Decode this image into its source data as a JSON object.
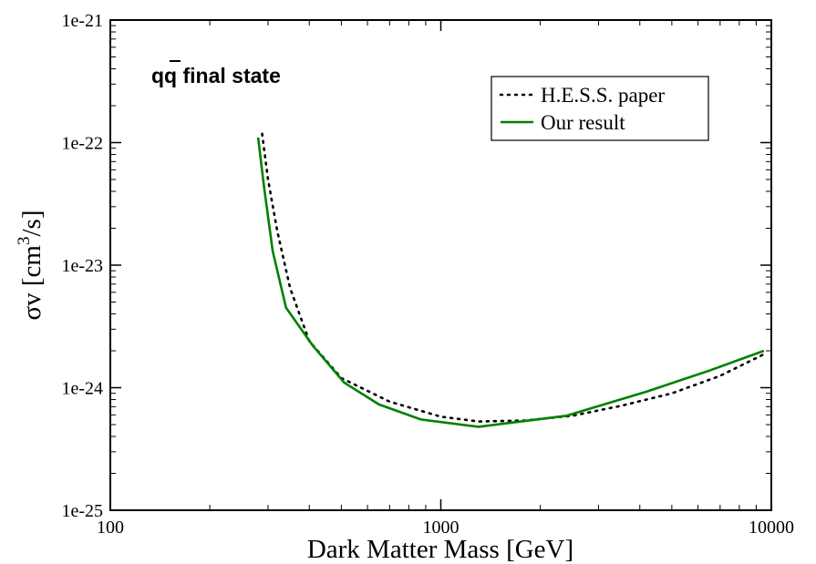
{
  "chart_data": {
    "type": "line",
    "annotation_main": "qq",
    "annotation_rest": " final state",
    "xlabel": "Dark Matter Mass [GeV]",
    "ylabel_main": "σv [cm",
    "ylabel_sup": "3",
    "ylabel_end": "/s]",
    "x_scale": "log",
    "y_scale": "log",
    "xlim": [
      100,
      10000
    ],
    "ylim": [
      1e-25,
      1e-21
    ],
    "x_ticks": [
      {
        "value": 100,
        "label": "100"
      },
      {
        "value": 1000,
        "label": "1000"
      },
      {
        "value": 10000,
        "label": "10000"
      }
    ],
    "y_ticks": [
      {
        "value": 1e-25,
        "label": "1e-25"
      },
      {
        "value": 1e-24,
        "label": "1e-24"
      },
      {
        "value": 1e-23,
        "label": "1e-23"
      },
      {
        "value": 1e-22,
        "label": "1e-22"
      },
      {
        "value": 1e-21,
        "label": "1e-21"
      }
    ],
    "grid": false,
    "legend_position": "top-right",
    "series": [
      {
        "name": "H.E.S.S. paper",
        "color": "#000000",
        "style": "dotted",
        "x": [
          288,
          300,
          320,
          350,
          400,
          500,
          700,
          1000,
          1300,
          1800,
          2500,
          3500,
          5000,
          7000,
          9700
        ],
        "y": [
          1.18e-22,
          5e-23,
          1.9e-23,
          6.5e-24,
          2.4e-24,
          1.2e-24,
          7.7e-25,
          5.8e-25,
          5.3e-25,
          5.4e-25,
          5.9e-25,
          7.1e-25,
          9e-25,
          1.25e-24,
          1.93e-24
        ]
      },
      {
        "name": "Our result",
        "color": "#008000",
        "style": "solid",
        "x": [
          280,
          292,
          310,
          340,
          410,
          510,
          650,
          870,
          1300,
          2400,
          4200,
          6500,
          9500
        ],
        "y": [
          1.1e-22,
          4.3e-23,
          1.3e-23,
          4.5e-24,
          2.2e-24,
          1.1e-24,
          7.3e-25,
          5.5e-25,
          4.8e-25,
          5.9e-25,
          9.3e-25,
          1.38e-24,
          2e-24
        ]
      }
    ]
  }
}
